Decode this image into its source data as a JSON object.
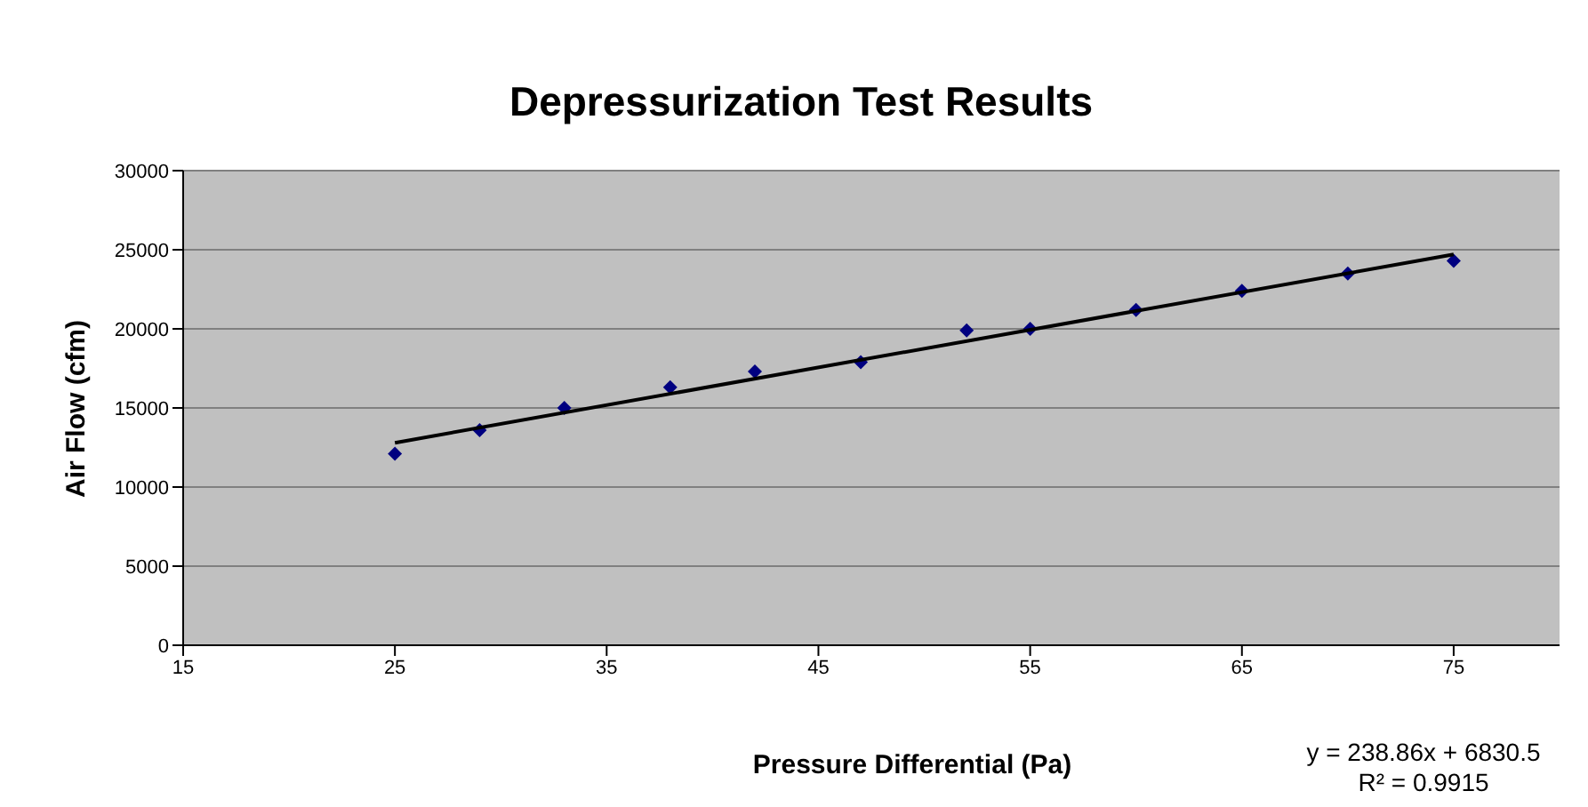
{
  "chart_data": {
    "type": "scatter",
    "title": "Depressurization Test Results",
    "xlabel": "Pressure Differential (Pa)",
    "ylabel": "Air Flow (cfm)",
    "annotations": [
      "y = 238.86x + 6830.5",
      "R² = 0.9915"
    ],
    "x": [
      25,
      29,
      33,
      38,
      42,
      47,
      52,
      55,
      60,
      65,
      70,
      75
    ],
    "series": [
      {
        "color": "#000080",
        "values": [
          12100,
          13600,
          15000,
          16300,
          17300,
          17900,
          19900,
          20000,
          21200,
          22400,
          23500,
          24300
        ]
      },
      {
        "type": "line",
        "color": "#000000",
        "marker": "none",
        "x": [
          25,
          75
        ],
        "values": [
          12800,
          24700
        ]
      }
    ],
    "xlim": [
      15,
      80
    ],
    "xticks": [
      15,
      25,
      35,
      45,
      55,
      65,
      75
    ],
    "ylim": [
      0,
      30000
    ],
    "yticks": [
      0,
      5000,
      10000,
      15000,
      20000,
      25000,
      30000
    ],
    "grid": "y",
    "marker": "diamond"
  }
}
